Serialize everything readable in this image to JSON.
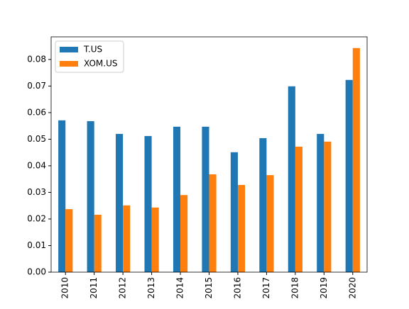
{
  "chart_data": {
    "type": "bar",
    "categories": [
      "2010",
      "2011",
      "2012",
      "2013",
      "2014",
      "2015",
      "2016",
      "2017",
      "2018",
      "2019",
      "2020"
    ],
    "series": [
      {
        "name": "T.US",
        "color": "#1f77b4",
        "values": [
          0.0571,
          0.0568,
          0.052,
          0.0512,
          0.0547,
          0.0547,
          0.0451,
          0.0504,
          0.0699,
          0.052,
          0.0723
        ]
      },
      {
        "name": "XOM.US",
        "color": "#ff7f0e",
        "values": [
          0.0237,
          0.0216,
          0.0251,
          0.0243,
          0.029,
          0.0368,
          0.0328,
          0.0365,
          0.0472,
          0.0491,
          0.0843
        ]
      }
    ],
    "ylim": [
      0,
      0.0885
    ],
    "yticks": [
      {
        "value": 0,
        "label": "0.00"
      },
      {
        "value": 0.01,
        "label": "0.01"
      },
      {
        "value": 0.02,
        "label": "0.02"
      },
      {
        "value": 0.03,
        "label": "0.03"
      },
      {
        "value": 0.04,
        "label": "0.04"
      },
      {
        "value": 0.05,
        "label": "0.05"
      },
      {
        "value": 0.06,
        "label": "0.06"
      },
      {
        "value": 0.07,
        "label": "0.07"
      },
      {
        "value": 0.08,
        "label": "0.08"
      }
    ],
    "legend": "upper left"
  }
}
